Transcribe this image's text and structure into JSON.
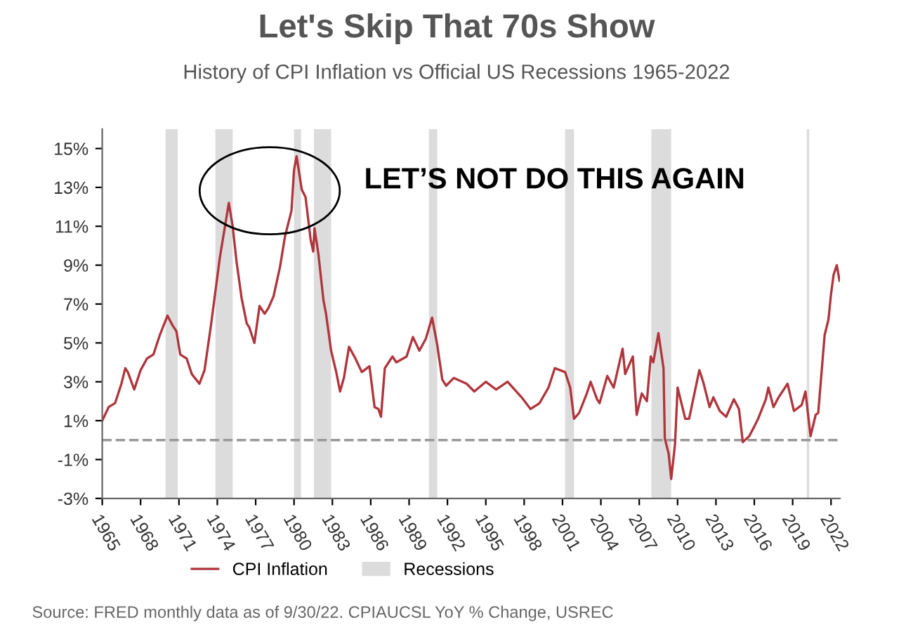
{
  "chart_data": {
    "type": "line",
    "title": "Let's Skip That 70s Show",
    "subtitle": "History of CPI Inflation vs Official US Recessions 1965-2022",
    "x": [
      1965.0,
      1965.5,
      1966.0,
      1966.5,
      1966.8,
      1967.0,
      1967.5,
      1968.0,
      1968.5,
      1969.0,
      1969.5,
      1970.1,
      1970.5,
      1970.8,
      1971.1,
      1971.6,
      1972.0,
      1972.6,
      1973.0,
      1973.5,
      1973.8,
      1974.2,
      1974.6,
      1974.9,
      1975.2,
      1975.5,
      1975.9,
      1976.3,
      1976.5,
      1976.9,
      1977.3,
      1977.7,
      1978.0,
      1978.4,
      1978.9,
      1979.3,
      1979.8,
      1980.0,
      1980.2,
      1980.6,
      1980.9,
      1981.3,
      1981.5,
      1981.6,
      1981.9,
      1982.3,
      1982.5,
      1982.9,
      1983.3,
      1983.6,
      1983.9,
      1984.3,
      1984.8,
      1985.3,
      1985.9,
      1986.3,
      1986.6,
      1986.8,
      1987.1,
      1987.7,
      1988.0,
      1988.8,
      1989.3,
      1989.8,
      1990.3,
      1990.8,
      1991.2,
      1991.6,
      1991.9,
      1992.5,
      1993.5,
      1994.1,
      1995.0,
      1995.8,
      1996.7,
      1997.8,
      1998.5,
      1999.2,
      1999.9,
      2000.4,
      2001.2,
      2001.6,
      2001.9,
      2002.3,
      2002.9,
      2003.2,
      2003.7,
      2003.9,
      2004.5,
      2005.0,
      2005.7,
      2005.9,
      2006.5,
      2006.8,
      2007.2,
      2007.6,
      2007.9,
      2008.1,
      2008.5,
      2008.9,
      2009.0,
      2009.3,
      2009.5,
      2009.8,
      2010.0,
      2010.6,
      2010.9,
      2011.7,
      2012.0,
      2012.5,
      2012.8,
      2013.3,
      2013.8,
      2014.4,
      2014.8,
      2015.1,
      2015.6,
      2016.0,
      2016.3,
      2016.9,
      2017.1,
      2017.5,
      2017.9,
      2018.6,
      2019.1,
      2019.7,
      2020.0,
      2020.4,
      2020.8,
      2021.0,
      2021.5,
      2021.8,
      2022.0,
      2022.2,
      2022.45,
      2022.67
    ],
    "series": [
      {
        "name": "CPI Inflation",
        "color": "#b0353c",
        "values": [
          1.0,
          1.7,
          1.9,
          2.9,
          3.7,
          3.5,
          2.6,
          3.6,
          4.2,
          4.4,
          5.4,
          6.4,
          5.9,
          5.6,
          4.4,
          4.2,
          3.4,
          2.9,
          3.6,
          5.9,
          7.4,
          9.4,
          11.0,
          12.2,
          11.0,
          9.2,
          7.3,
          6.0,
          5.8,
          5.0,
          6.9,
          6.5,
          6.8,
          7.4,
          8.9,
          10.5,
          11.8,
          13.9,
          14.6,
          12.9,
          12.5,
          10.3,
          9.7,
          10.9,
          9.6,
          7.2,
          6.5,
          4.6,
          3.5,
          2.5,
          3.2,
          4.8,
          4.2,
          3.5,
          3.8,
          1.7,
          1.6,
          1.2,
          3.7,
          4.3,
          4.0,
          4.3,
          5.3,
          4.6,
          5.2,
          6.3,
          4.9,
          3.1,
          2.8,
          3.2,
          2.9,
          2.5,
          3.0,
          2.6,
          3.0,
          2.2,
          1.6,
          1.9,
          2.7,
          3.7,
          3.5,
          2.7,
          1.1,
          1.4,
          2.4,
          3.0,
          2.1,
          1.9,
          3.3,
          2.7,
          4.7,
          3.4,
          4.3,
          1.3,
          2.4,
          2.0,
          4.3,
          4.0,
          5.5,
          3.7,
          0.1,
          -0.7,
          -2.0,
          -0.2,
          2.7,
          1.1,
          1.1,
          3.6,
          3.0,
          1.7,
          2.2,
          1.5,
          1.2,
          2.1,
          1.6,
          -0.1,
          0.2,
          0.7,
          1.1,
          2.1,
          2.7,
          1.7,
          2.2,
          2.9,
          1.5,
          1.8,
          2.5,
          0.2,
          1.3,
          1.4,
          5.4,
          6.2,
          7.5,
          8.5,
          9.0,
          8.2
        ]
      }
    ],
    "xlim": [
      1965,
      2022.7
    ],
    "xticks": [
      1965,
      1968,
      1971,
      1974,
      1977,
      1980,
      1983,
      1986,
      1989,
      1992,
      1995,
      1998,
      2001,
      2004,
      2007,
      2010,
      2013,
      2016,
      2019,
      2022
    ],
    "ylim": [
      -3,
      16
    ],
    "yticks": [
      {
        "value": -3,
        "label": "-3%"
      },
      {
        "value": -1,
        "label": "-1%"
      },
      {
        "value": 1,
        "label": "1%"
      },
      {
        "value": 3,
        "label": "3%"
      },
      {
        "value": 5,
        "label": "5%"
      },
      {
        "value": 7,
        "label": "7%"
      },
      {
        "value": 9,
        "label": "9%"
      },
      {
        "value": 11,
        "label": "11%"
      },
      {
        "value": 13,
        "label": "13%"
      },
      {
        "value": 15,
        "label": "15%"
      }
    ],
    "ref_lines": [
      {
        "axis": "y",
        "value": 0,
        "color": "#999999",
        "line_style": "dashed"
      }
    ],
    "bands": [
      {
        "axis": "x",
        "from": 1969.95,
        "to": 1970.9,
        "label": "Recessions",
        "color": "#dcdcdc"
      },
      {
        "axis": "x",
        "from": 1973.85,
        "to": 1975.2,
        "color": "#dcdcdc"
      },
      {
        "axis": "x",
        "from": 1980.0,
        "to": 1980.55,
        "color": "#dcdcdc"
      },
      {
        "axis": "x",
        "from": 1981.55,
        "to": 1982.9,
        "color": "#dcdcdc"
      },
      {
        "axis": "x",
        "from": 1990.55,
        "to": 1991.2,
        "color": "#dcdcdc"
      },
      {
        "axis": "x",
        "from": 2001.2,
        "to": 2001.9,
        "color": "#dcdcdc"
      },
      {
        "axis": "x",
        "from": 2007.95,
        "to": 2009.5,
        "color": "#dcdcdc"
      },
      {
        "axis": "x",
        "from": 2020.1,
        "to": 2020.3,
        "color": "#dcdcdc"
      }
    ],
    "annotations": [
      "LET’S NOT DO THIS AGAIN",
      "Source: FRED monthly data as of 9/30/22. CPIAUCSL YoY % Change, USREC"
    ],
    "legend": "bottom",
    "grid": false,
    "marker": "none",
    "line_style": "solid"
  }
}
